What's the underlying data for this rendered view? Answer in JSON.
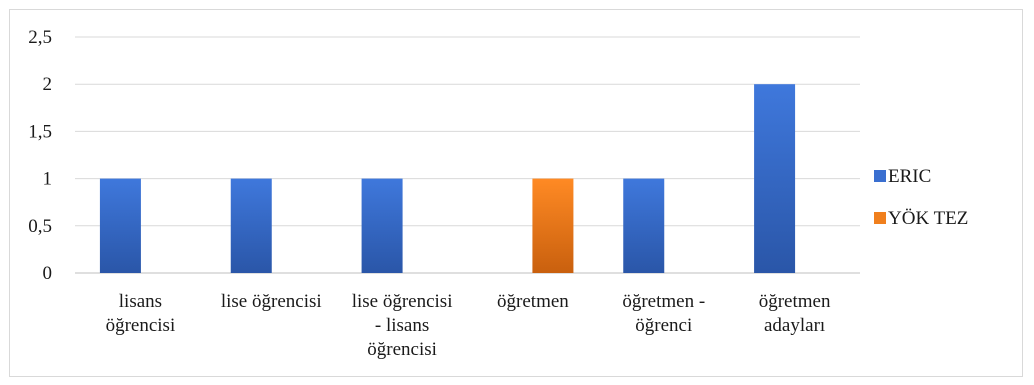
{
  "chart_data": {
    "type": "bar",
    "title": "",
    "xlabel": "",
    "ylabel": "",
    "ylim": [
      0,
      2.5
    ],
    "yticks": [
      0,
      0.5,
      1,
      1.5,
      2,
      2.5
    ],
    "ytick_labels": [
      "0",
      "0,5",
      "1",
      "1,5",
      "2",
      "2,5"
    ],
    "grid": true,
    "legend_position": "right",
    "categories": [
      [
        "lisans",
        "öğrencisi"
      ],
      [
        "lise öğrencisi"
      ],
      [
        "lise öğrencisi",
        "- lisans",
        "öğrencisi"
      ],
      [
        "öğretmen"
      ],
      [
        "öğretmen -",
        "öğrenci"
      ],
      [
        "öğretmen",
        "adayları"
      ]
    ],
    "series": [
      {
        "name": "ERIC",
        "color": "#3a6fd0",
        "values": [
          1,
          1,
          1,
          0,
          1,
          2
        ]
      },
      {
        "name": "YÖK TEZ",
        "color": "#f07f1d",
        "values": [
          0,
          0,
          0,
          1,
          0,
          0
        ]
      }
    ]
  }
}
